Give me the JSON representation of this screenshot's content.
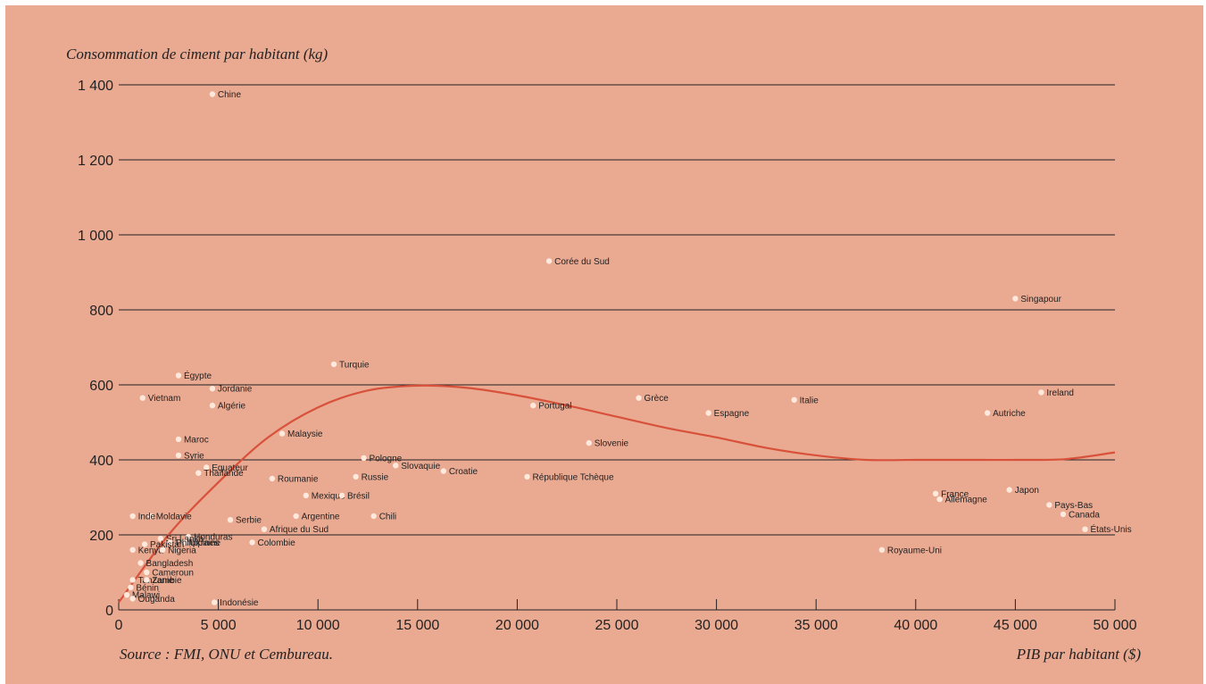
{
  "chart_data": {
    "type": "scatter",
    "title": "Consommation de ciment par habitant (kg)",
    "xlabel": "PIB par habitant ($)",
    "source": "Source : FMI, ONU et Cembureau.",
    "xlim": [
      0,
      50000
    ],
    "ylim": [
      0,
      1400
    ],
    "xticks": [
      0,
      5000,
      10000,
      15000,
      20000,
      25000,
      30000,
      35000,
      40000,
      45000,
      50000
    ],
    "xtick_labels": [
      "0",
      "5 000",
      "10 000",
      "15 000",
      "20 000",
      "25 000",
      "30 000",
      "35 000",
      "40 000",
      "45 000",
      "50 000"
    ],
    "yticks": [
      0,
      200,
      400,
      600,
      800,
      1000,
      1200,
      1400
    ],
    "ytick_labels": [
      "0",
      "200",
      "400",
      "600",
      "800",
      "1 000",
      "1 200",
      "1 400"
    ],
    "grid": "horizontal",
    "colors": {
      "background": "#eaa991",
      "point": "#ffe9dc",
      "curve": "#d8513b",
      "grid": "#222222",
      "text": "#222222"
    },
    "points": [
      {
        "x": 4700,
        "y": 1375,
        "label": "Chine"
      },
      {
        "x": 21600,
        "y": 930,
        "label": "Corée du Sud"
      },
      {
        "x": 45000,
        "y": 830,
        "label": "Singapour"
      },
      {
        "x": 10800,
        "y": 655,
        "label": "Turquie"
      },
      {
        "x": 3000,
        "y": 625,
        "label": "Égypte"
      },
      {
        "x": 4700,
        "y": 590,
        "label": "Jordanie"
      },
      {
        "x": 4700,
        "y": 545,
        "label": "Algérie"
      },
      {
        "x": 1200,
        "y": 565,
        "label": "Vietnam"
      },
      {
        "x": 8200,
        "y": 470,
        "label": "Malaysie"
      },
      {
        "x": 3000,
        "y": 455,
        "label": "Maroc"
      },
      {
        "x": 3000,
        "y": 412,
        "label": "Syrie"
      },
      {
        "x": 4400,
        "y": 380,
        "label": "Equateur"
      },
      {
        "x": 4000,
        "y": 365,
        "label": "Thaïlande"
      },
      {
        "x": 7700,
        "y": 350,
        "label": "Roumanie"
      },
      {
        "x": 9400,
        "y": 305,
        "label": "Mexique"
      },
      {
        "x": 11200,
        "y": 305,
        "label": "Brésil"
      },
      {
        "x": 11900,
        "y": 355,
        "label": "Russie"
      },
      {
        "x": 12300,
        "y": 405,
        "label": "Pologne"
      },
      {
        "x": 13900,
        "y": 385,
        "label": "Slovaquie"
      },
      {
        "x": 16300,
        "y": 370,
        "label": "Croatie"
      },
      {
        "x": 12800,
        "y": 250,
        "label": "Chili"
      },
      {
        "x": 8900,
        "y": 250,
        "label": "Argentine"
      },
      {
        "x": 7300,
        "y": 215,
        "label": "Afrique du Sud"
      },
      {
        "x": 5600,
        "y": 240,
        "label": "Serbie"
      },
      {
        "x": 6700,
        "y": 180,
        "label": "Colombie"
      },
      {
        "x": 20800,
        "y": 545,
        "label": "Portugal"
      },
      {
        "x": 23600,
        "y": 445,
        "label": "Slovenie"
      },
      {
        "x": 20500,
        "y": 355,
        "label": "République Tchèque"
      },
      {
        "x": 26100,
        "y": 565,
        "label": "Grèce"
      },
      {
        "x": 29600,
        "y": 525,
        "label": "Espagne"
      },
      {
        "x": 33900,
        "y": 560,
        "label": "Italie"
      },
      {
        "x": 43600,
        "y": 525,
        "label": "Autriche"
      },
      {
        "x": 46300,
        "y": 580,
        "label": "Ireland"
      },
      {
        "x": 44700,
        "y": 320,
        "label": "Japon"
      },
      {
        "x": 41000,
        "y": 310,
        "label": "France"
      },
      {
        "x": 41200,
        "y": 295,
        "label": "Allemagne"
      },
      {
        "x": 46700,
        "y": 280,
        "label": "Pays-Bas"
      },
      {
        "x": 47400,
        "y": 255,
        "label": "Canada"
      },
      {
        "x": 48500,
        "y": 215,
        "label": "États-Unis"
      },
      {
        "x": 38300,
        "y": 160,
        "label": "Royaume-Uni"
      },
      {
        "x": 1600,
        "y": 250,
        "label": "Moldavie"
      },
      {
        "x": 3500,
        "y": 195,
        "label": "Honduras"
      },
      {
        "x": 2100,
        "y": 190,
        "label": "Sri Lanka"
      },
      {
        "x": 700,
        "y": 250,
        "label": "Inde"
      },
      {
        "x": 3300,
        "y": 180,
        "label": "Ukraine"
      },
      {
        "x": 2600,
        "y": 180,
        "label": "Philippines"
      },
      {
        "x": 1300,
        "y": 175,
        "label": "Pakistan"
      },
      {
        "x": 700,
        "y": 160,
        "label": "Kenya"
      },
      {
        "x": 2200,
        "y": 160,
        "label": "Nigeria"
      },
      {
        "x": 1100,
        "y": 125,
        "label": "Bangladesh"
      },
      {
        "x": 1400,
        "y": 100,
        "label": "Cameroun"
      },
      {
        "x": 700,
        "y": 80,
        "label": "Tanzanie"
      },
      {
        "x": 1400,
        "y": 80,
        "label": "Zambie"
      },
      {
        "x": 600,
        "y": 60,
        "label": "Bénin"
      },
      {
        "x": 400,
        "y": 40,
        "label": "Malawi"
      },
      {
        "x": 700,
        "y": 30,
        "label": "Ouganda"
      },
      {
        "x": 4800,
        "y": 20,
        "label": "Indonésie"
      }
    ],
    "trend": {
      "x": [
        0,
        2500,
        5000,
        7500,
        10000,
        12500,
        15000,
        17500,
        20000,
        22500,
        25000,
        27500,
        30000,
        32500,
        35000,
        37500,
        40000,
        42500,
        45000,
        47500,
        50000
      ],
      "y": [
        20,
        200,
        340,
        460,
        540,
        585,
        598,
        592,
        572,
        545,
        515,
        485,
        460,
        432,
        412,
        400,
        400,
        400,
        400,
        402,
        420
      ]
    }
  }
}
